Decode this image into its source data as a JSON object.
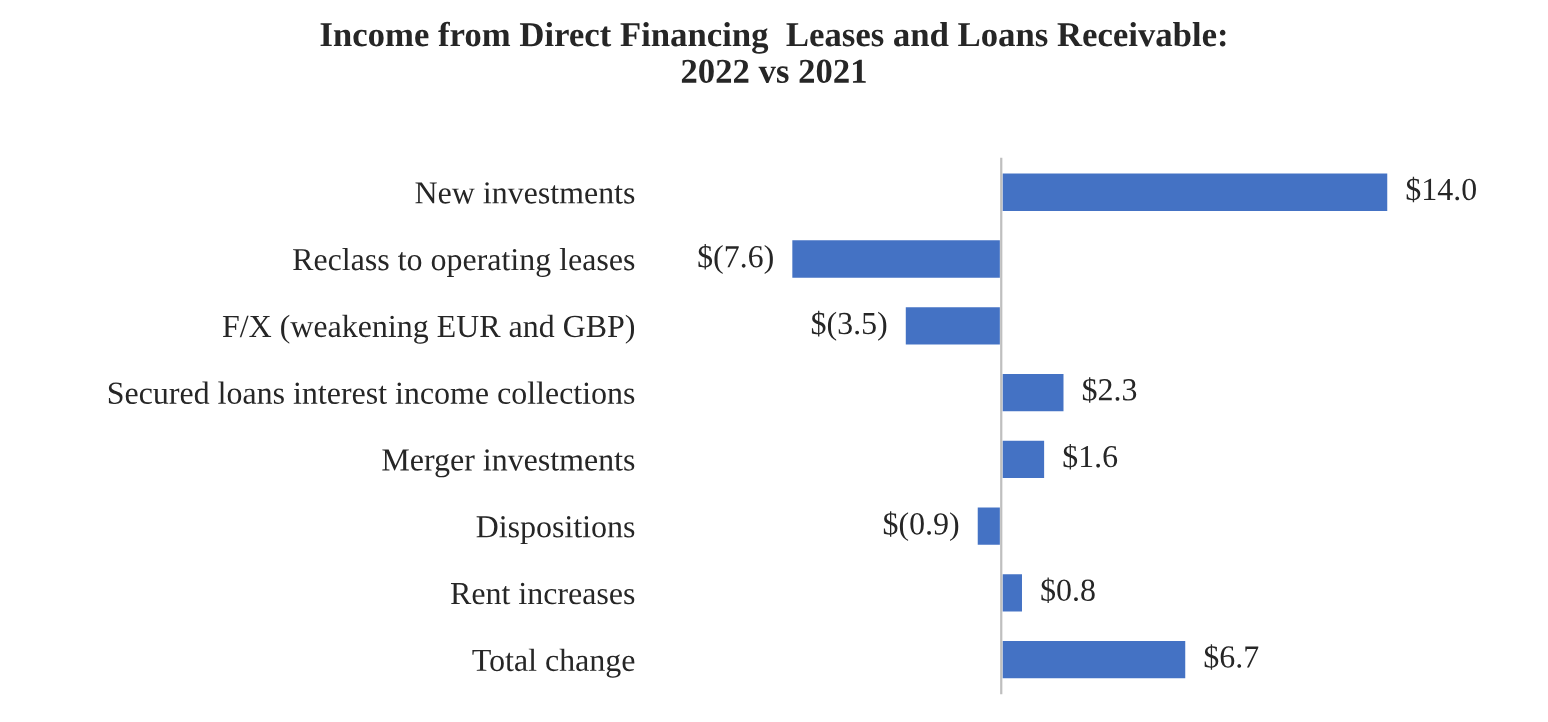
{
  "chart_data": {
    "type": "bar",
    "orientation": "horizontal",
    "title": "Income from Direct Financing  Leases and Loans Receivable:\n2022 vs 2021",
    "categories": [
      "New investments",
      "Reclass to operating leases",
      "F/X (weakening EUR and GBP)",
      "Secured loans interest income collections",
      "Merger investments",
      "Dispositions",
      "Rent increases",
      "Total change"
    ],
    "values": [
      14.0,
      -7.6,
      -3.5,
      2.3,
      1.6,
      -0.9,
      0.8,
      6.7
    ],
    "value_labels": [
      "$14.0",
      "$(7.6)",
      "$(3.5)",
      "$2.3",
      "$1.6",
      "$(0.9)",
      "$0.8",
      "$6.7"
    ],
    "color": "#4472c4",
    "tick_labels": "y",
    "grid": false,
    "legend": false
  }
}
